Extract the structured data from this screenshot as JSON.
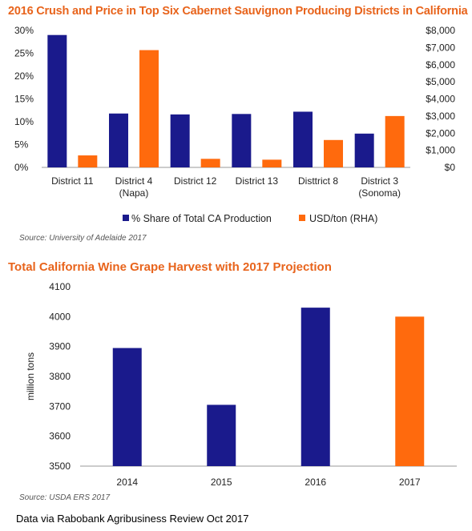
{
  "chart_data": [
    {
      "type": "bar",
      "title": "2016 Crush and Price in Top Six Cabernet Sauvignon Producing Districts in California",
      "categories": [
        [
          "District 11"
        ],
        [
          "District 4",
          "(Napa)"
        ],
        [
          "District 12"
        ],
        [
          "District 13"
        ],
        [
          "Disttrict 8"
        ],
        [
          "District 3",
          "(Sonoma)"
        ]
      ],
      "series": [
        {
          "name": "% Share of  Total CA Production",
          "axis": "left",
          "color": "#1a1a8c",
          "values": [
            29,
            11.8,
            11.6,
            11.7,
            12.2,
            7.4
          ]
        },
        {
          "name": "USD/ton  (RHA)",
          "axis": "right",
          "color": "#ff6a0d",
          "values": [
            700,
            6850,
            500,
            450,
            1600,
            3000
          ]
        }
      ],
      "y_left": {
        "min": 0,
        "max": 30,
        "ticks": [
          "0%",
          "5%",
          "10%",
          "15%",
          "20%",
          "25%",
          "30%"
        ]
      },
      "y_right": {
        "min": 0,
        "max": 8000,
        "ticks": [
          "$0",
          "$1,000",
          "$2,000",
          "$3,000",
          "$4,000",
          "$5,000",
          "$6,000",
          "$7,000",
          "$8,000"
        ]
      },
      "legend_position": "bottom",
      "grid": false,
      "source": "Source: University of Adelaide 2017"
    },
    {
      "type": "bar",
      "title": "Total California Wine Grape Harvest with 2017 Projection",
      "categories": [
        "2014",
        "2015",
        "2016",
        "2017"
      ],
      "values": [
        3895,
        3705,
        4030,
        4000
      ],
      "colors": [
        "#1a1a8c",
        "#1a1a8c",
        "#1a1a8c",
        "#ff6a0d"
      ],
      "ylabel": "million tons",
      "ylim": [
        3500,
        4100
      ],
      "yticks": [
        "3500",
        "3600",
        "3700",
        "3800",
        "3900",
        "4000",
        "4100"
      ],
      "grid": false,
      "source": "Source: USDA ERS 2017"
    }
  ],
  "footer": "Data via Rabobank Agribusiness Review Oct 2017"
}
